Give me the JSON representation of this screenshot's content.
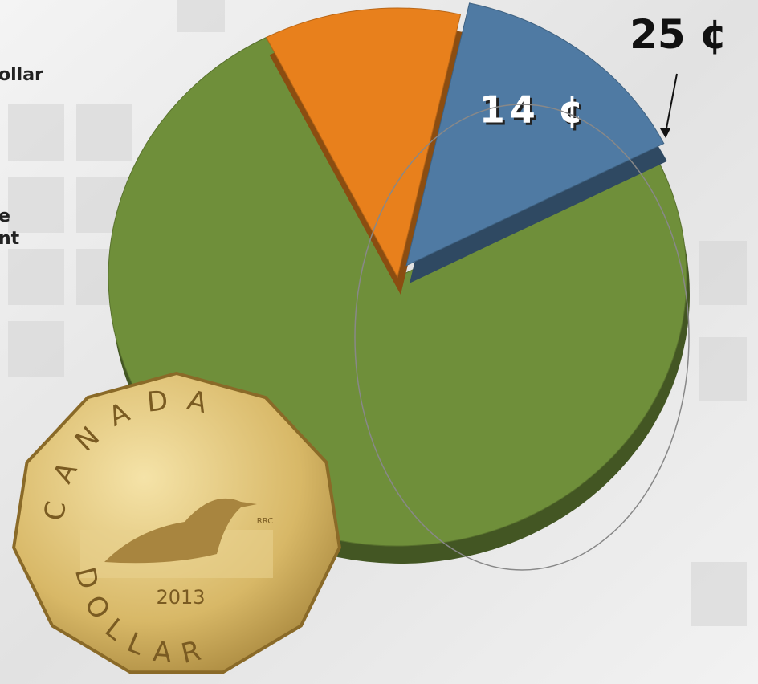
{
  "chart_data": {
    "type": "pie",
    "values": [
      75,
      11,
      14
    ],
    "value_labels": [
      null,
      null,
      "14 ¢"
    ],
    "colors": [
      "#6f8f3a",
      "#e8801c",
      "#4f7aa3"
    ],
    "annotations": [
      "25 ¢"
    ]
  },
  "slide_text": [
    "ollar",
    "e",
    "nt"
  ],
  "coin": {
    "country": "CANADA",
    "year": "2013",
    "denomination": "DOLLAR",
    "mark": "RRC"
  }
}
